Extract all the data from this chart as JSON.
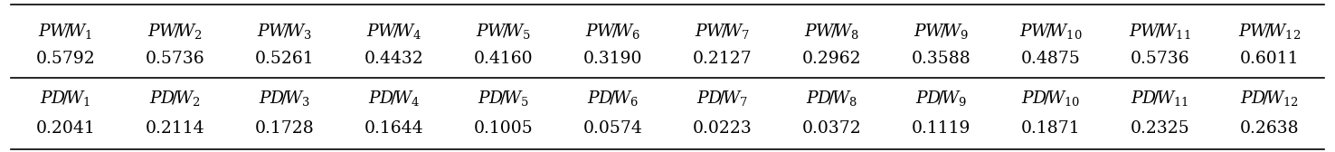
{
  "pw_labels": [
    "$PW\\!/\\!W_1$",
    "$PW\\!/\\!W_2$",
    "$PW\\!/\\!W_3$",
    "$PW\\!/\\!W_4$",
    "$PW\\!/\\!W_5$",
    "$PW\\!/\\!W_6$",
    "$PW\\!/\\!W_7$",
    "$PW\\!/\\!W_8$",
    "$PW\\!/\\!W_9$",
    "$PW\\!/\\!W_{10}$",
    "$PW\\!/\\!W_{11}$",
    "$PW\\!/\\!W_{12}$"
  ],
  "pw_values": [
    "0.5792",
    "0.5736",
    "0.5261",
    "0.4432",
    "0.4160",
    "0.3190",
    "0.2127",
    "0.2962",
    "0.3588",
    "0.4875",
    "0.5736",
    "0.6011"
  ],
  "pd_labels": [
    "$PD\\!/\\!W_1$",
    "$PD\\!/\\!W_2$",
    "$PD\\!/\\!W_3$",
    "$PD\\!/\\!W_4$",
    "$PD\\!/\\!W_5$",
    "$PD\\!/\\!W_6$",
    "$PD\\!/\\!W_7$",
    "$PD\\!/\\!W_8$",
    "$PD\\!/\\!W_9$",
    "$PD\\!/\\!W_{10}$",
    "$PD\\!/\\!W_{11}$",
    "$PD\\!/\\!W_{12}$"
  ],
  "pd_values": [
    "0.2041",
    "0.2114",
    "0.1728",
    "0.1644",
    "0.1005",
    "0.0574",
    "0.0223",
    "0.0372",
    "0.1119",
    "0.1871",
    "0.2325",
    "0.2638"
  ],
  "n_cols": 12,
  "background_color": "#ffffff",
  "line_color": "#000000",
  "text_color": "#000000",
  "label_fontsize": 13.5,
  "value_fontsize": 13.5,
  "fig_width": 14.76,
  "fig_height": 1.68,
  "dpi": 100
}
